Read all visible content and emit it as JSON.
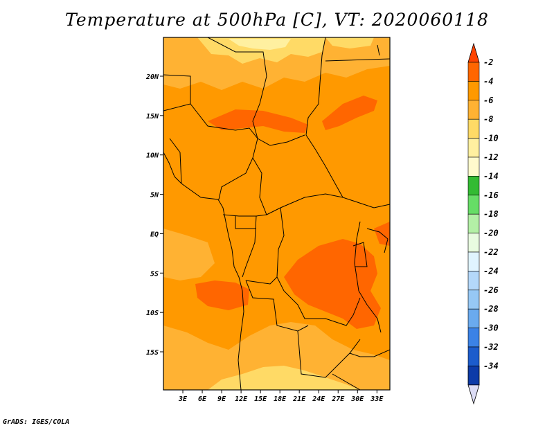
{
  "title": "Temperature at 500hPa [C], VT: 2020060118",
  "credit": "GrADS: IGES/COLA",
  "map": {
    "lat_range": [
      -20,
      25
    ],
    "lon_range": [
      0,
      35
    ],
    "lat_ticks": [
      {
        "value": 20,
        "label": "20N"
      },
      {
        "value": 15,
        "label": "15N"
      },
      {
        "value": 10,
        "label": "10N"
      },
      {
        "value": 5,
        "label": "5N"
      },
      {
        "value": 0,
        "label": "EQ"
      },
      {
        "value": -5,
        "label": "5S"
      },
      {
        "value": -10,
        "label": "10S"
      },
      {
        "value": -15,
        "label": "15S"
      }
    ],
    "lon_ticks": [
      {
        "value": 3,
        "label": "3E"
      },
      {
        "value": 6,
        "label": "6E"
      },
      {
        "value": 9,
        "label": "9E"
      },
      {
        "value": 12,
        "label": "12E"
      },
      {
        "value": 15,
        "label": "15E"
      },
      {
        "value": 18,
        "label": "18E"
      },
      {
        "value": 21,
        "label": "21E"
      },
      {
        "value": 24,
        "label": "24E"
      },
      {
        "value": 27,
        "label": "27E"
      },
      {
        "value": 30,
        "label": "30E"
      },
      {
        "value": 33,
        "label": "33E"
      }
    ]
  },
  "colorbar": {
    "levels": [
      {
        "label": "-2",
        "color": "#ff6600"
      },
      {
        "label": "-4",
        "color": "#ff9900"
      },
      {
        "label": "-6",
        "color": "#ffb233"
      },
      {
        "label": "-8",
        "color": "#ffda66"
      },
      {
        "label": "-10",
        "color": "#fff0a0"
      },
      {
        "label": "-12",
        "color": "#fffacd"
      },
      {
        "label": "-14",
        "color": "#33bb33"
      },
      {
        "label": "-16",
        "color": "#66dd66"
      },
      {
        "label": "-18",
        "color": "#b3f0a6"
      },
      {
        "label": "-20",
        "color": "#e8fbe0"
      },
      {
        "label": "-22",
        "color": "#e0f4ff"
      },
      {
        "label": "-24",
        "color": "#b4d8fa"
      },
      {
        "label": "-26",
        "color": "#96c8f5"
      },
      {
        "label": "-28",
        "color": "#6aaaee"
      },
      {
        "label": "-30",
        "color": "#3b82e6"
      },
      {
        "label": "-32",
        "color": "#1c5ccc"
      },
      {
        "label": "-34",
        "color": "#0d3ba8"
      }
    ],
    "top_arrow_color": "#ff4400",
    "bottom_arrow_color": "#dcdcf5",
    "below_last_color": "#0a1a6e"
  }
}
